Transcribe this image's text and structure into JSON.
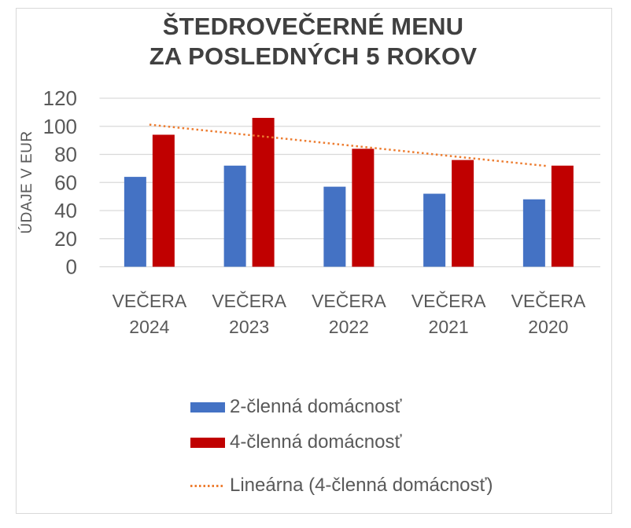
{
  "chart_data": {
    "type": "bar",
    "title": "ŠTEDROVEČERNÉ MENU ZA POSLEDNÝCH 5 ROKOV",
    "ylabel": "ÚDAJE V EUR",
    "xlabel": "",
    "ylim": [
      0,
      120
    ],
    "ytick_step": 20,
    "yticks": [
      0,
      20,
      40,
      60,
      80,
      100,
      120
    ],
    "grid": "horizontal",
    "legend_position": "bottom",
    "categories": [
      "VEČERA 2024",
      "VEČERA 2023",
      "VEČERA 2022",
      "VEČERA 2021",
      "VEČERA 2020"
    ],
    "series": [
      {
        "name": "2-členná domácnosť",
        "color": "#4472C4",
        "values": [
          64,
          72,
          57,
          52,
          48
        ]
      },
      {
        "name": "4-členná domácnosť",
        "color": "#C00000",
        "values": [
          94,
          106,
          84,
          76,
          72
        ]
      }
    ],
    "trendline": {
      "name": "Lineárna (4-členná domácnosť)",
      "color": "#ED7D31",
      "style": "dotted",
      "endpoint_values": [
        101.2,
        71.6
      ]
    }
  },
  "style": {
    "title_color": "#404040",
    "axis_text_color": "#595959",
    "gridline_color": "#D9D9D9",
    "frame_border_color": "#D9D9D9",
    "background": "#FFFFFF"
  }
}
